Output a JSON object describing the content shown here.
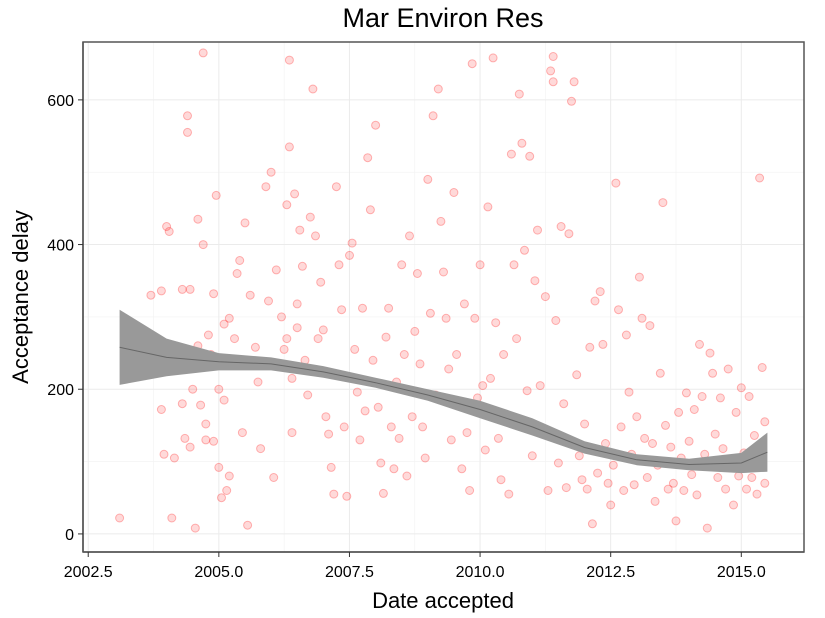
{
  "chart_data": {
    "type": "scatter",
    "title": "Mar Environ Res",
    "xlabel": "Date accepted",
    "ylabel": "Acceptance delay",
    "xlim": [
      2002.4,
      2016.2
    ],
    "ylim": [
      -25,
      680
    ],
    "x_ticks": [
      2002.5,
      2005.0,
      2007.5,
      2010.0,
      2012.5,
      2015.0
    ],
    "x_tick_labels": [
      "2002.5",
      "2005.0",
      "2007.5",
      "2010.0",
      "2012.5",
      "2015.0"
    ],
    "y_ticks": [
      0,
      200,
      400,
      600
    ],
    "y_tick_labels": [
      "0",
      "200",
      "400",
      "600"
    ],
    "grid": true,
    "legend": "none",
    "point_color": "#ff0000",
    "band_color": "#999999",
    "line_color": "#666666",
    "series": [
      {
        "type": "scatter",
        "points": [
          [
            2003.1,
            22
          ],
          [
            2003.7,
            330
          ],
          [
            2003.9,
            336
          ],
          [
            2003.9,
            172
          ],
          [
            2003.95,
            110
          ],
          [
            2004.0,
            425
          ],
          [
            2004.05,
            418
          ],
          [
            2004.1,
            22
          ],
          [
            2004.15,
            105
          ],
          [
            2004.3,
            338
          ],
          [
            2004.3,
            180
          ],
          [
            2004.35,
            132
          ],
          [
            2004.4,
            578
          ],
          [
            2004.4,
            555
          ],
          [
            2004.45,
            338
          ],
          [
            2004.45,
            120
          ],
          [
            2004.5,
            200
          ],
          [
            2004.55,
            8
          ],
          [
            2004.6,
            435
          ],
          [
            2004.6,
            260
          ],
          [
            2004.65,
            178
          ],
          [
            2004.7,
            665
          ],
          [
            2004.7,
            400
          ],
          [
            2004.75,
            152
          ],
          [
            2004.75,
            130
          ],
          [
            2004.8,
            275
          ],
          [
            2004.85,
            248
          ],
          [
            2004.9,
            332
          ],
          [
            2004.9,
            128
          ],
          [
            2004.95,
            468
          ],
          [
            2005.0,
            200
          ],
          [
            2005.0,
            92
          ],
          [
            2005.05,
            50
          ],
          [
            2005.1,
            290
          ],
          [
            2005.1,
            185
          ],
          [
            2005.15,
            60
          ],
          [
            2005.2,
            298
          ],
          [
            2005.2,
            80
          ],
          [
            2005.3,
            270
          ],
          [
            2005.35,
            360
          ],
          [
            2005.4,
            378
          ],
          [
            2005.45,
            140
          ],
          [
            2005.5,
            430
          ],
          [
            2005.55,
            12
          ],
          [
            2005.6,
            330
          ],
          [
            2005.7,
            258
          ],
          [
            2005.75,
            210
          ],
          [
            2005.8,
            118
          ],
          [
            2005.9,
            480
          ],
          [
            2005.95,
            322
          ],
          [
            2006.0,
            500
          ],
          [
            2006.05,
            78
          ],
          [
            2006.1,
            365
          ],
          [
            2006.15,
            232
          ],
          [
            2006.2,
            300
          ],
          [
            2006.25,
            255
          ],
          [
            2006.3,
            455
          ],
          [
            2006.3,
            270
          ],
          [
            2006.35,
            535
          ],
          [
            2006.35,
            655
          ],
          [
            2006.4,
            215
          ],
          [
            2006.4,
            140
          ],
          [
            2006.45,
            470
          ],
          [
            2006.5,
            318
          ],
          [
            2006.5,
            285
          ],
          [
            2006.55,
            420
          ],
          [
            2006.6,
            370
          ],
          [
            2006.65,
            240
          ],
          [
            2006.7,
            192
          ],
          [
            2006.75,
            438
          ],
          [
            2006.8,
            615
          ],
          [
            2006.85,
            412
          ],
          [
            2006.9,
            270
          ],
          [
            2006.95,
            348
          ],
          [
            2007.0,
            282
          ],
          [
            2007.05,
            162
          ],
          [
            2007.1,
            138
          ],
          [
            2007.15,
            92
          ],
          [
            2007.2,
            55
          ],
          [
            2007.25,
            480
          ],
          [
            2007.3,
            372
          ],
          [
            2007.35,
            310
          ],
          [
            2007.4,
            148
          ],
          [
            2007.45,
            52
          ],
          [
            2007.5,
            385
          ],
          [
            2007.55,
            402
          ],
          [
            2007.6,
            255
          ],
          [
            2007.65,
            196
          ],
          [
            2007.7,
            130
          ],
          [
            2007.75,
            312
          ],
          [
            2007.8,
            170
          ],
          [
            2007.85,
            520
          ],
          [
            2007.9,
            448
          ],
          [
            2007.95,
            240
          ],
          [
            2008.0,
            565
          ],
          [
            2008.05,
            175
          ],
          [
            2008.1,
            98
          ],
          [
            2008.15,
            56
          ],
          [
            2008.2,
            272
          ],
          [
            2008.25,
            312
          ],
          [
            2008.3,
            148
          ],
          [
            2008.35,
            90
          ],
          [
            2008.4,
            210
          ],
          [
            2008.45,
            132
          ],
          [
            2008.5,
            372
          ],
          [
            2008.55,
            248
          ],
          [
            2008.6,
            80
          ],
          [
            2008.65,
            412
          ],
          [
            2008.7,
            162
          ],
          [
            2008.75,
            280
          ],
          [
            2008.8,
            360
          ],
          [
            2008.85,
            235
          ],
          [
            2008.9,
            148
          ],
          [
            2008.95,
            105
          ],
          [
            2009.0,
            490
          ],
          [
            2009.05,
            305
          ],
          [
            2009.1,
            578
          ],
          [
            2009.15,
            192
          ],
          [
            2009.2,
            615
          ],
          [
            2009.25,
            432
          ],
          [
            2009.3,
            362
          ],
          [
            2009.35,
            298
          ],
          [
            2009.4,
            228
          ],
          [
            2009.45,
            130
          ],
          [
            2009.5,
            472
          ],
          [
            2009.55,
            248
          ],
          [
            2009.6,
            180
          ],
          [
            2009.65,
            90
          ],
          [
            2009.7,
            318
          ],
          [
            2009.75,
            140
          ],
          [
            2009.8,
            60
          ],
          [
            2009.85,
            650
          ],
          [
            2009.9,
            298
          ],
          [
            2009.95,
            188
          ],
          [
            2010.0,
            372
          ],
          [
            2010.05,
            205
          ],
          [
            2010.1,
            116
          ],
          [
            2010.15,
            452
          ],
          [
            2010.2,
            215
          ],
          [
            2010.25,
            658
          ],
          [
            2010.3,
            292
          ],
          [
            2010.35,
            132
          ],
          [
            2010.4,
            75
          ],
          [
            2010.45,
            248
          ],
          [
            2010.5,
            162
          ],
          [
            2010.55,
            55
          ],
          [
            2010.6,
            525
          ],
          [
            2010.65,
            372
          ],
          [
            2010.7,
            270
          ],
          [
            2010.75,
            608
          ],
          [
            2010.8,
            540
          ],
          [
            2010.85,
            392
          ],
          [
            2010.9,
            198
          ],
          [
            2010.95,
            522
          ],
          [
            2011.0,
            108
          ],
          [
            2011.05,
            350
          ],
          [
            2011.1,
            420
          ],
          [
            2011.15,
            205
          ],
          [
            2011.2,
            142
          ],
          [
            2011.25,
            328
          ],
          [
            2011.3,
            60
          ],
          [
            2011.35,
            640
          ],
          [
            2011.4,
            625
          ],
          [
            2011.4,
            660
          ],
          [
            2011.45,
            295
          ],
          [
            2011.5,
            98
          ],
          [
            2011.55,
            425
          ],
          [
            2011.6,
            180
          ],
          [
            2011.65,
            64
          ],
          [
            2011.7,
            415
          ],
          [
            2011.75,
            598
          ],
          [
            2011.8,
            625
          ],
          [
            2011.85,
            220
          ],
          [
            2011.9,
            108
          ],
          [
            2011.95,
            75
          ],
          [
            2012.0,
            152
          ],
          [
            2012.05,
            62
          ],
          [
            2012.1,
            258
          ],
          [
            2012.15,
            14
          ],
          [
            2012.2,
            322
          ],
          [
            2012.25,
            84
          ],
          [
            2012.3,
            335
          ],
          [
            2012.35,
            262
          ],
          [
            2012.4,
            125
          ],
          [
            2012.45,
            70
          ],
          [
            2012.5,
            40
          ],
          [
            2012.55,
            95
          ],
          [
            2012.6,
            485
          ],
          [
            2012.65,
            310
          ],
          [
            2012.7,
            148
          ],
          [
            2012.75,
            60
          ],
          [
            2012.8,
            275
          ],
          [
            2012.85,
            196
          ],
          [
            2012.9,
            110
          ],
          [
            2012.95,
            68
          ],
          [
            2013.0,
            162
          ],
          [
            2013.05,
            355
          ],
          [
            2013.1,
            298
          ],
          [
            2013.15,
            132
          ],
          [
            2013.2,
            78
          ],
          [
            2013.25,
            288
          ],
          [
            2013.3,
            125
          ],
          [
            2013.35,
            45
          ],
          [
            2013.4,
            95
          ],
          [
            2013.45,
            222
          ],
          [
            2013.5,
            458
          ],
          [
            2013.55,
            150
          ],
          [
            2013.6,
            62
          ],
          [
            2013.65,
            120
          ],
          [
            2013.7,
            70
          ],
          [
            2013.75,
            18
          ],
          [
            2013.8,
            168
          ],
          [
            2013.85,
            105
          ],
          [
            2013.9,
            60
          ],
          [
            2013.95,
            195
          ],
          [
            2014.0,
            128
          ],
          [
            2014.05,
            82
          ],
          [
            2014.1,
            172
          ],
          [
            2014.15,
            54
          ],
          [
            2014.2,
            262
          ],
          [
            2014.25,
            190
          ],
          [
            2014.3,
            110
          ],
          [
            2014.35,
            8
          ],
          [
            2014.4,
            250
          ],
          [
            2014.45,
            222
          ],
          [
            2014.5,
            138
          ],
          [
            2014.55,
            78
          ],
          [
            2014.6,
            188
          ],
          [
            2014.65,
            118
          ],
          [
            2014.7,
            62
          ],
          [
            2014.75,
            228
          ],
          [
            2014.8,
            98
          ],
          [
            2014.85,
            40
          ],
          [
            2014.9,
            168
          ],
          [
            2014.95,
            80
          ],
          [
            2015.0,
            202
          ],
          [
            2015.05,
            112
          ],
          [
            2015.1,
            62
          ],
          [
            2015.15,
            190
          ],
          [
            2015.2,
            78
          ],
          [
            2015.25,
            136
          ],
          [
            2015.3,
            55
          ],
          [
            2015.35,
            492
          ],
          [
            2015.4,
            230
          ],
          [
            2015.45,
            155
          ],
          [
            2015.45,
            70
          ]
        ]
      },
      {
        "type": "area",
        "name": "",
        "x": [
          2003.1,
          2004.0,
          2005.0,
          2006.0,
          2007.0,
          2008.0,
          2009.0,
          2010.0,
          2011.0,
          2012.0,
          2013.0,
          2014.0,
          2015.0,
          2015.5
        ],
        "lower": [
          206,
          218,
          226,
          226,
          216,
          202,
          184,
          160,
          136,
          111,
          95,
          88,
          84,
          86
        ],
        "upper": [
          310,
          270,
          250,
          244,
          232,
          216,
          200,
          184,
          160,
          128,
          110,
          104,
          112,
          140
        ]
      }
    ]
  }
}
